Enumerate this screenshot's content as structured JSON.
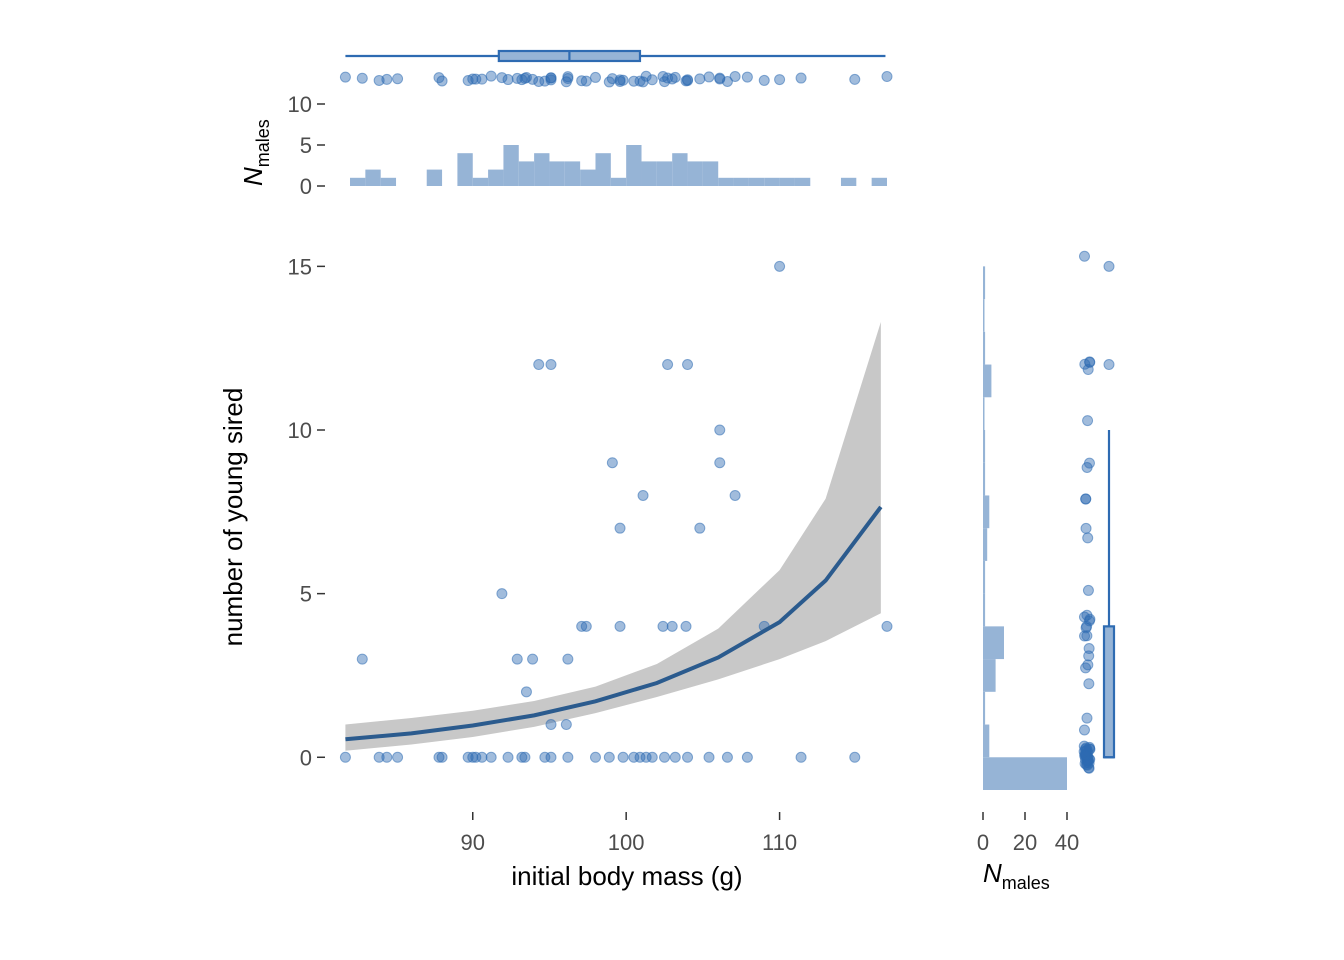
{
  "chart_data": {
    "type": "scatter",
    "xlabel": "initial body mass (g)",
    "ylabel": "number of young sired",
    "xlim": [
      80.5,
      118.5
    ],
    "ylim": [
      -1.0,
      15.5
    ],
    "x_ticks": [
      90,
      100,
      110
    ],
    "y_ticks": [
      0,
      5,
      10,
      15
    ],
    "grid": false,
    "legend": "none",
    "colors": {
      "points": "#2e6bb2",
      "fit_line": "#2b5b8e",
      "ribbon": "#c8c8c8",
      "marginal": "#96b4d6"
    },
    "points": [
      [
        81.7,
        0
      ],
      [
        83.9,
        0
      ],
      [
        84.4,
        0
      ],
      [
        85.1,
        0
      ],
      [
        87.8,
        0
      ],
      [
        88.0,
        0
      ],
      [
        89.7,
        0
      ],
      [
        90.0,
        0
      ],
      [
        90.2,
        0
      ],
      [
        90.6,
        0
      ],
      [
        91.2,
        0
      ],
      [
        92.3,
        0
      ],
      [
        93.2,
        0
      ],
      [
        93.4,
        0
      ],
      [
        94.7,
        0
      ],
      [
        95.1,
        0
      ],
      [
        96.2,
        0
      ],
      [
        98.0,
        0
      ],
      [
        98.9,
        0
      ],
      [
        99.8,
        0
      ],
      [
        100.5,
        0
      ],
      [
        100.9,
        0
      ],
      [
        101.3,
        0
      ],
      [
        101.7,
        0
      ],
      [
        102.5,
        0
      ],
      [
        103.2,
        0
      ],
      [
        104.0,
        0
      ],
      [
        105.4,
        0
      ],
      [
        106.6,
        0
      ],
      [
        107.9,
        0
      ],
      [
        111.4,
        0
      ],
      [
        114.9,
        0
      ],
      [
        82.8,
        3
      ],
      [
        92.9,
        3
      ],
      [
        93.9,
        3
      ],
      [
        96.2,
        3
      ],
      [
        95.1,
        1
      ],
      [
        96.1,
        1
      ],
      [
        93.5,
        2
      ],
      [
        91.9,
        5
      ],
      [
        97.1,
        4
      ],
      [
        97.4,
        4
      ],
      [
        99.6,
        4
      ],
      [
        102.4,
        4
      ],
      [
        103.0,
        4
      ],
      [
        103.9,
        4
      ],
      [
        109.0,
        4
      ],
      [
        117.0,
        4
      ],
      [
        99.1,
        9
      ],
      [
        101.1,
        8
      ],
      [
        99.6,
        7
      ],
      [
        104.8,
        7
      ],
      [
        106.1,
        10
      ],
      [
        106.1,
        9
      ],
      [
        107.1,
        8
      ],
      [
        94.3,
        12
      ],
      [
        95.1,
        12
      ],
      [
        102.7,
        12
      ],
      [
        104.0,
        12
      ],
      [
        110.0,
        15
      ]
    ],
    "fit": {
      "x": [
        81.7,
        86,
        90,
        94,
        98,
        102,
        106,
        110,
        113,
        116.6
      ],
      "y": [
        0.55,
        0.73,
        0.97,
        1.28,
        1.71,
        2.27,
        3.05,
        4.13,
        5.4,
        7.65
      ],
      "lower": [
        0.2,
        0.39,
        0.62,
        0.93,
        1.35,
        1.84,
        2.38,
        3.0,
        3.55,
        4.4
      ],
      "upper": [
        1.0,
        1.2,
        1.42,
        1.72,
        2.16,
        2.85,
        3.93,
        5.72,
        7.9,
        13.3
      ]
    },
    "top_panel": {
      "ylabel_main": "N",
      "ylabel_sub": "males",
      "y_ticks": [
        0,
        5,
        10
      ],
      "ylim": [
        0,
        11
      ],
      "bin_width": 1,
      "bins": [
        [
          82,
          1
        ],
        [
          83,
          2
        ],
        [
          84,
          1
        ],
        [
          87,
          2
        ],
        [
          89,
          4
        ],
        [
          90,
          1
        ],
        [
          91,
          2
        ],
        [
          92,
          5
        ],
        [
          93,
          3
        ],
        [
          94,
          4
        ],
        [
          95,
          3
        ],
        [
          96,
          3
        ],
        [
          97,
          2
        ],
        [
          98,
          4
        ],
        [
          99,
          1
        ],
        [
          100,
          5
        ],
        [
          101,
          3
        ],
        [
          102,
          3
        ],
        [
          103,
          4
        ],
        [
          104,
          3
        ],
        [
          105,
          3
        ],
        [
          106,
          1
        ],
        [
          107,
          1
        ],
        [
          108,
          1
        ],
        [
          109,
          1
        ],
        [
          110,
          1
        ],
        [
          111,
          1
        ],
        [
          114,
          1
        ],
        [
          116,
          1
        ]
      ],
      "box": {
        "min": 81.7,
        "q1": 91.7,
        "median": 96.3,
        "q3": 100.9,
        "max": 116.9
      }
    },
    "right_panel": {
      "xlabel_main": "N",
      "xlabel_sub": "males",
      "x_ticks": [
        0,
        20,
        40
      ],
      "xlim": [
        0,
        42
      ],
      "bin_width": 1,
      "bins": [
        [
          0,
          40
        ],
        [
          1,
          3
        ],
        [
          2,
          1
        ],
        [
          3,
          6
        ],
        [
          4,
          10
        ],
        [
          5,
          1
        ],
        [
          6,
          1
        ],
        [
          7,
          2
        ],
        [
          8,
          3
        ],
        [
          9,
          1
        ],
        [
          10,
          1
        ],
        [
          11,
          0
        ],
        [
          12,
          4
        ],
        [
          13,
          1
        ],
        [
          14,
          0
        ],
        [
          15,
          1
        ]
      ],
      "box": {
        "min": 0,
        "q1": 0,
        "median": 0,
        "q3": 4,
        "max": 10
      },
      "outliers": [
        12,
        15
      ]
    }
  }
}
